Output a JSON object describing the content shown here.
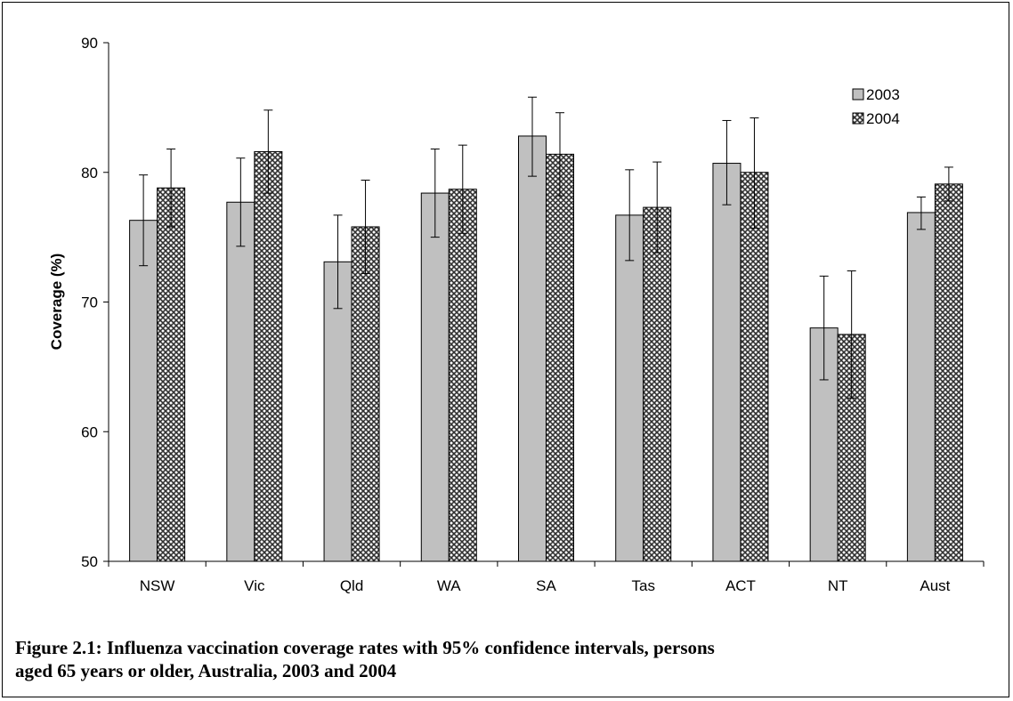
{
  "chart_data": {
    "type": "bar",
    "title": "",
    "xlabel": "",
    "ylabel": "Coverage (%)",
    "ylim": [
      50,
      90
    ],
    "yticks": [
      "50",
      "60",
      "70",
      "80",
      "90"
    ],
    "grid": false,
    "legend_position": "top-right",
    "error_bars": "95% confidence intervals",
    "categories": [
      "NSW",
      "Vic",
      "Qld",
      "WA",
      "SA",
      "Tas",
      "ACT",
      "NT",
      "Aust"
    ],
    "series": [
      {
        "name": "2003",
        "pattern": "solid-grey",
        "color": "#c0c0c0",
        "values": [
          76.3,
          77.7,
          73.1,
          78.4,
          82.8,
          76.7,
          80.7,
          68.0,
          76.9
        ],
        "ci_low": [
          72.8,
          74.3,
          69.5,
          75.0,
          79.7,
          73.2,
          77.5,
          64.0,
          75.6
        ],
        "ci_high": [
          79.8,
          81.1,
          76.7,
          81.8,
          85.8,
          80.2,
          84.0,
          72.0,
          78.1
        ]
      },
      {
        "name": "2004",
        "pattern": "crosshatch",
        "color": "#4a4a4a",
        "values": [
          78.8,
          81.6,
          75.8,
          78.7,
          81.4,
          77.3,
          80.0,
          67.5,
          79.1
        ],
        "ci_low": [
          75.8,
          78.4,
          72.2,
          75.3,
          78.2,
          73.8,
          75.7,
          62.6,
          77.8
        ],
        "ci_high": [
          81.8,
          84.8,
          79.4,
          82.1,
          84.6,
          80.8,
          84.2,
          72.4,
          80.4
        ]
      }
    ]
  },
  "caption": {
    "line1": "Figure 2.1: Influenza vaccination coverage rates with 95% confidence intervals, persons",
    "line2": "aged 65 years or older, Australia, 2003 and 2004"
  }
}
